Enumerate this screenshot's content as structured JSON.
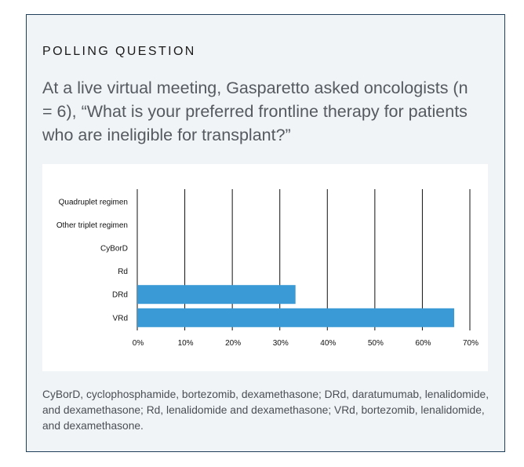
{
  "label": "POLLING QUESTION",
  "question": "At a live virtual meeting, Gasparetto asked oncologists (n = 6), “What is your preferred frontline therapy for patients who are ineligible for transplant?”",
  "footnote": "CyBorD, cyclophosphamide, bortezomib, dexamethasone; DRd, daratumumab, lenalidomide, and dexamethasone; Rd, lenalidomide and dexamethasone; VRd, bortezomib, lenalidomide, and dexamethasone.",
  "colors": {
    "bar": "#3a9ad5",
    "border": "#1f3f5b",
    "card_bg": "#f1f4f6"
  },
  "chart_data": {
    "type": "bar",
    "orientation": "horizontal",
    "categories": [
      "Quadruplet regimen",
      "Other triplet regimen",
      "CyBorD",
      "Rd",
      "DRd",
      "VRd"
    ],
    "values": [
      0,
      0,
      0,
      0,
      33.3,
      66.7
    ],
    "xlim": [
      0,
      70
    ],
    "xticks": [
      "0%",
      "10%",
      "20%",
      "30%",
      "40%",
      "50%",
      "60%",
      "70%"
    ],
    "grid": true
  }
}
